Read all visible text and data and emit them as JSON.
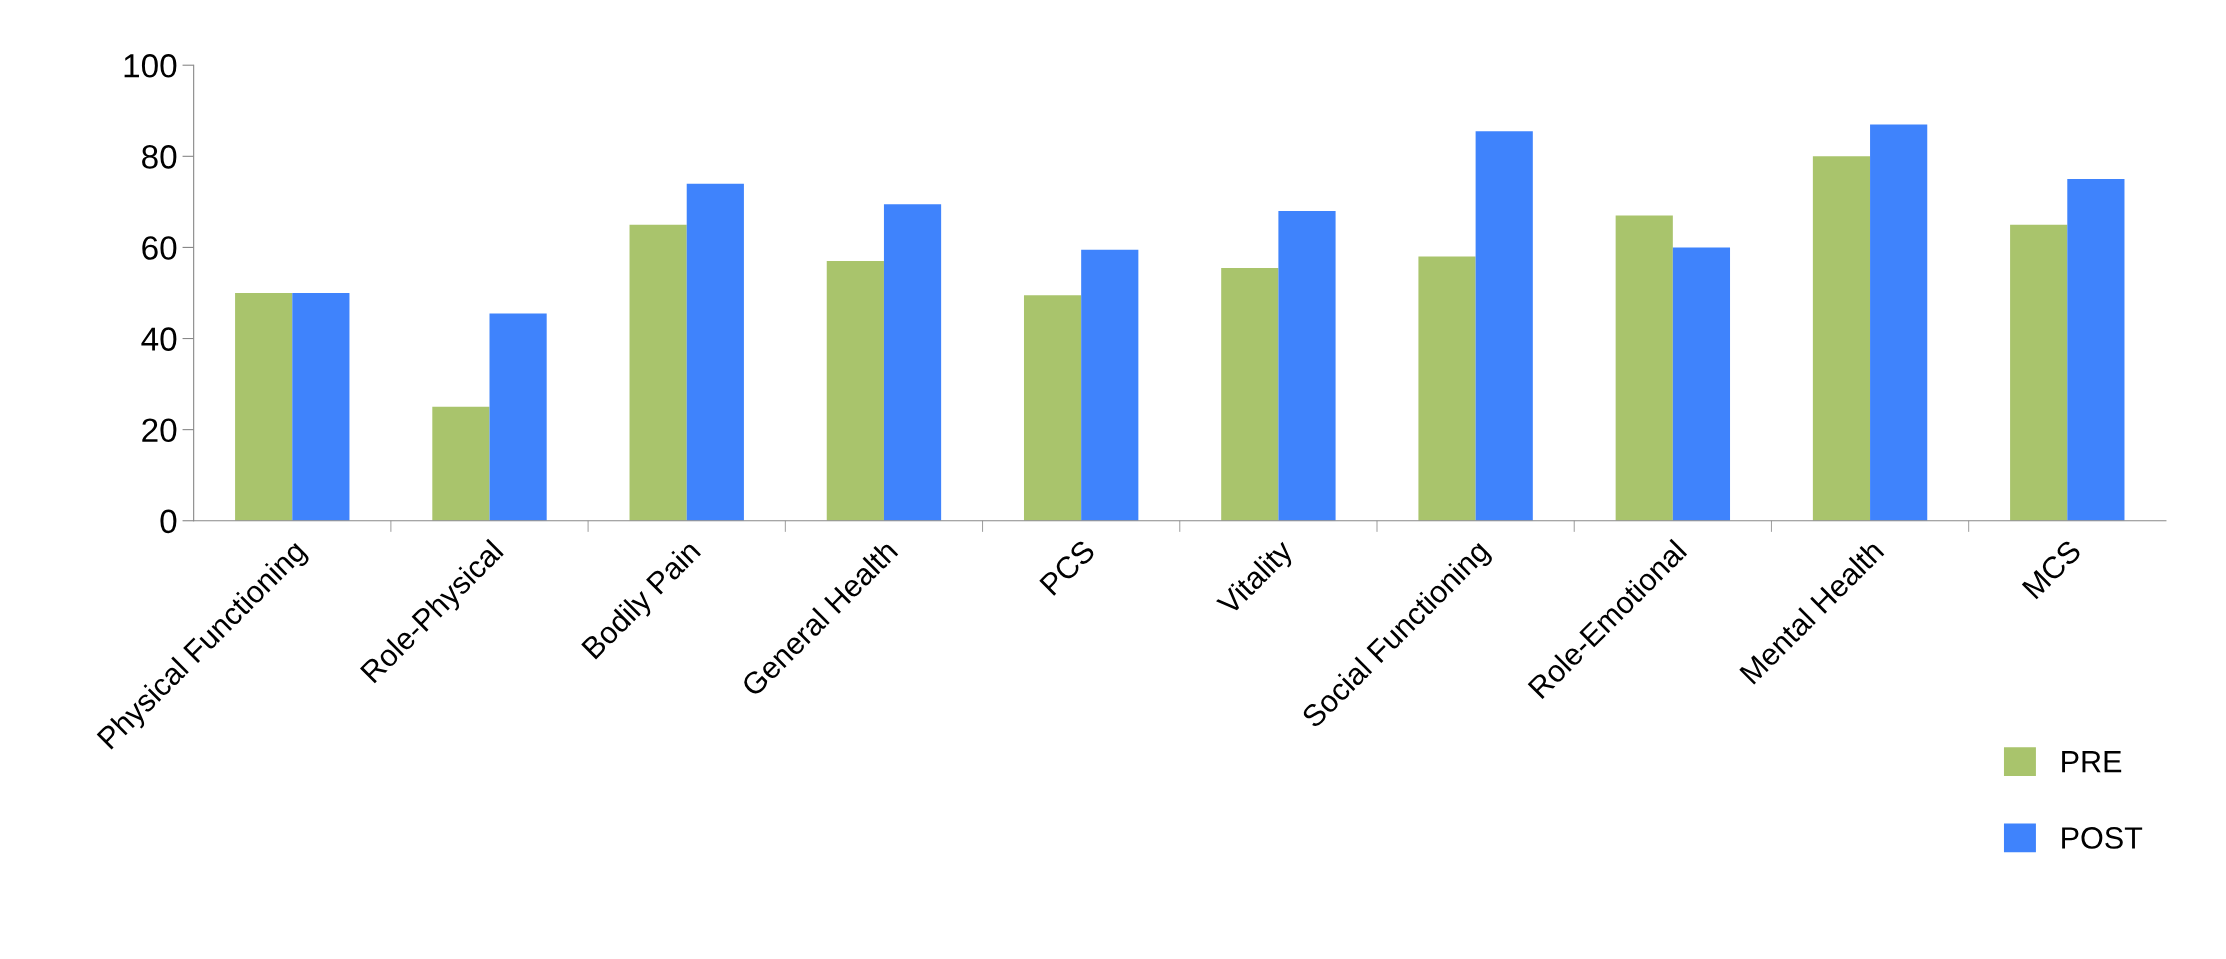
{
  "chart_data": {
    "type": "bar",
    "categories": [
      "Physical Functioning",
      "Role-Physical",
      "Bodily Pain",
      "General Health",
      "PCS",
      "Vitality",
      "Social Functioning",
      "Role-Emotional",
      "Mental Health",
      "MCS"
    ],
    "series": [
      {
        "name": "PRE",
        "color": "#a9c46c",
        "values": [
          50,
          25,
          65,
          57,
          49.5,
          55.5,
          58,
          67,
          80,
          65
        ]
      },
      {
        "name": "POST",
        "color": "#3f83fc",
        "values": [
          50,
          45.5,
          74,
          69.5,
          59.5,
          68,
          85.5,
          60,
          87,
          75
        ]
      }
    ],
    "ylim": [
      0,
      100
    ],
    "yticks": [
      0,
      20,
      40,
      60,
      80,
      100
    ],
    "grid": false,
    "legend": "bottom right"
  }
}
